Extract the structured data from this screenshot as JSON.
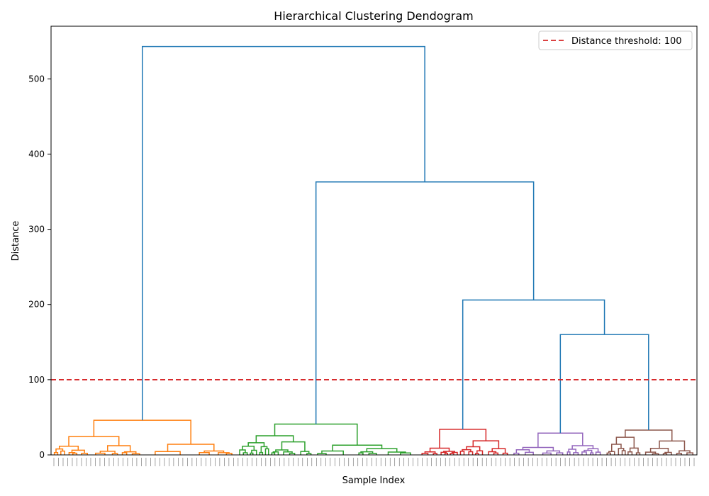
{
  "chart_data": {
    "type": "dendrogram",
    "title": "Hierarchical Clustering Dendogram",
    "xlabel": "Sample Index",
    "ylabel": "Distance",
    "ylim": [
      0,
      570
    ],
    "yticks": [
      0,
      100,
      200,
      300,
      400,
      500
    ],
    "grid": false,
    "legend": {
      "placement": "top-right",
      "entries": [
        "Distance threshold: 100"
      ]
    },
    "threshold": {
      "value": 100,
      "color": "#d62728",
      "style": "dashed",
      "label": "Distance threshold: 100"
    },
    "link_color_above_threshold": "#1f77b4",
    "clusters": [
      {
        "color": "#ff7f0e",
        "merge_height": 46
      },
      {
        "color": "#2ca02c",
        "merge_height": 41
      },
      {
        "color": "#d62728",
        "merge_height": 34
      },
      {
        "color": "#9467bd",
        "merge_height": 29
      },
      {
        "color": "#8c564b",
        "merge_height": 33
      }
    ],
    "top_merges": [
      {
        "left": "cluster-2",
        "right": "merge-a",
        "height": 206,
        "note": ""
      },
      {
        "height": 160
      },
      {
        "height": 363
      },
      {
        "height": 543
      }
    ]
  }
}
